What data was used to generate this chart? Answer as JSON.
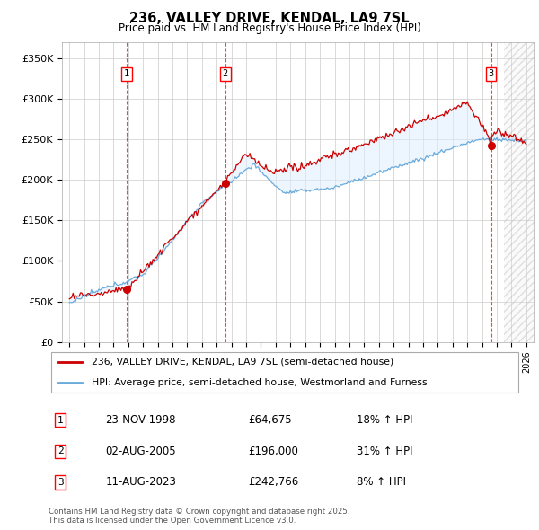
{
  "title": "236, VALLEY DRIVE, KENDAL, LA9 7SL",
  "subtitle": "Price paid vs. HM Land Registry's House Price Index (HPI)",
  "yticks": [
    0,
    50000,
    100000,
    150000,
    200000,
    250000,
    300000,
    350000
  ],
  "ytick_labels": [
    "£0",
    "£50K",
    "£100K",
    "£150K",
    "£200K",
    "£250K",
    "£300K",
    "£350K"
  ],
  "ylim": [
    0,
    370000
  ],
  "xlim_start": 1994.5,
  "xlim_end": 2026.5,
  "sale_dates": [
    1998.9,
    2005.58,
    2023.61
  ],
  "sale_prices": [
    64675,
    196000,
    242766
  ],
  "sale_labels": [
    "1",
    "2",
    "3"
  ],
  "hpi_label": "HPI: Average price, semi-detached house, Westmorland and Furness",
  "property_label": "236, VALLEY DRIVE, KENDAL, LA9 7SL (semi-detached house)",
  "hpi_line_color": "#6aabdb",
  "property_line_color": "#cc0000",
  "shade_color": "#ddeeff",
  "footer_text": "Contains HM Land Registry data © Crown copyright and database right 2025.\nThis data is licensed under the Open Government Licence v3.0.",
  "transaction_table": [
    {
      "label": "1",
      "date": "23-NOV-1998",
      "price": "£64,675",
      "hpi_change": "18% ↑ HPI"
    },
    {
      "label": "2",
      "date": "02-AUG-2005",
      "price": "£196,000",
      "hpi_change": "31% ↑ HPI"
    },
    {
      "label": "3",
      "date": "11-AUG-2023",
      "price": "£242,766",
      "hpi_change": "8% ↑ HPI"
    }
  ]
}
